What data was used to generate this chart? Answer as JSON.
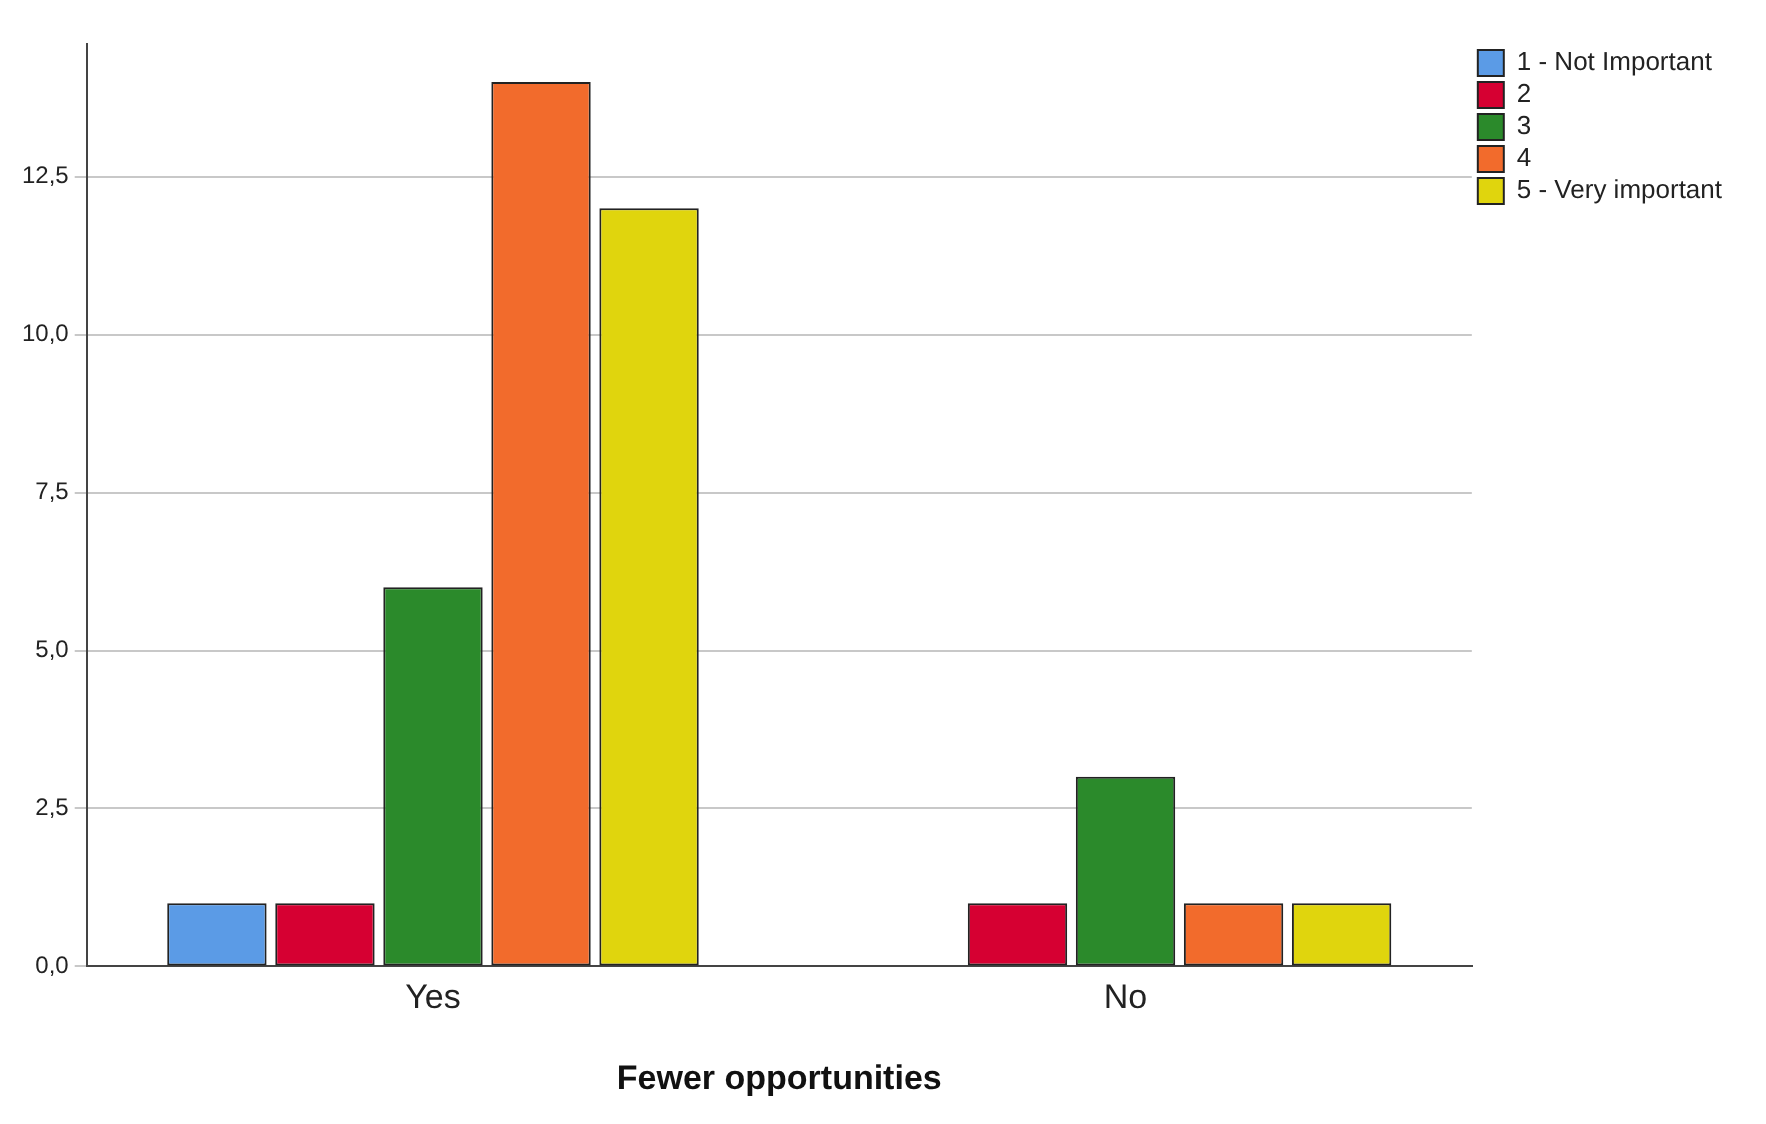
{
  "chart_data": {
    "type": "bar",
    "xlabel": "Fewer opportunities",
    "categories": [
      "Yes",
      "No"
    ],
    "series": [
      {
        "name": "1 - Not Important",
        "color": "#5b9be6",
        "values": [
          1,
          null
        ]
      },
      {
        "name": "2",
        "color": "#d60032",
        "values": [
          1,
          1
        ]
      },
      {
        "name": "3",
        "color": "#2b8a2b",
        "values": [
          6,
          3
        ]
      },
      {
        "name": "4",
        "color": "#f26b2c",
        "values": [
          14,
          1
        ]
      },
      {
        "name": "5 - Very important",
        "color": "#e0d50d",
        "values": [
          12,
          1
        ]
      }
    ],
    "ylim": [
      0,
      14.6
    ],
    "yticks": [
      {
        "value": 0,
        "label": "0,0"
      },
      {
        "value": 2.5,
        "label": "2,5"
      },
      {
        "value": 5,
        "label": "5,0"
      },
      {
        "value": 7.5,
        "label": "7,5"
      },
      {
        "value": 10,
        "label": "10,0"
      },
      {
        "value": 12.5,
        "label": "12,5"
      }
    ],
    "grid": "y",
    "legend": "right"
  }
}
